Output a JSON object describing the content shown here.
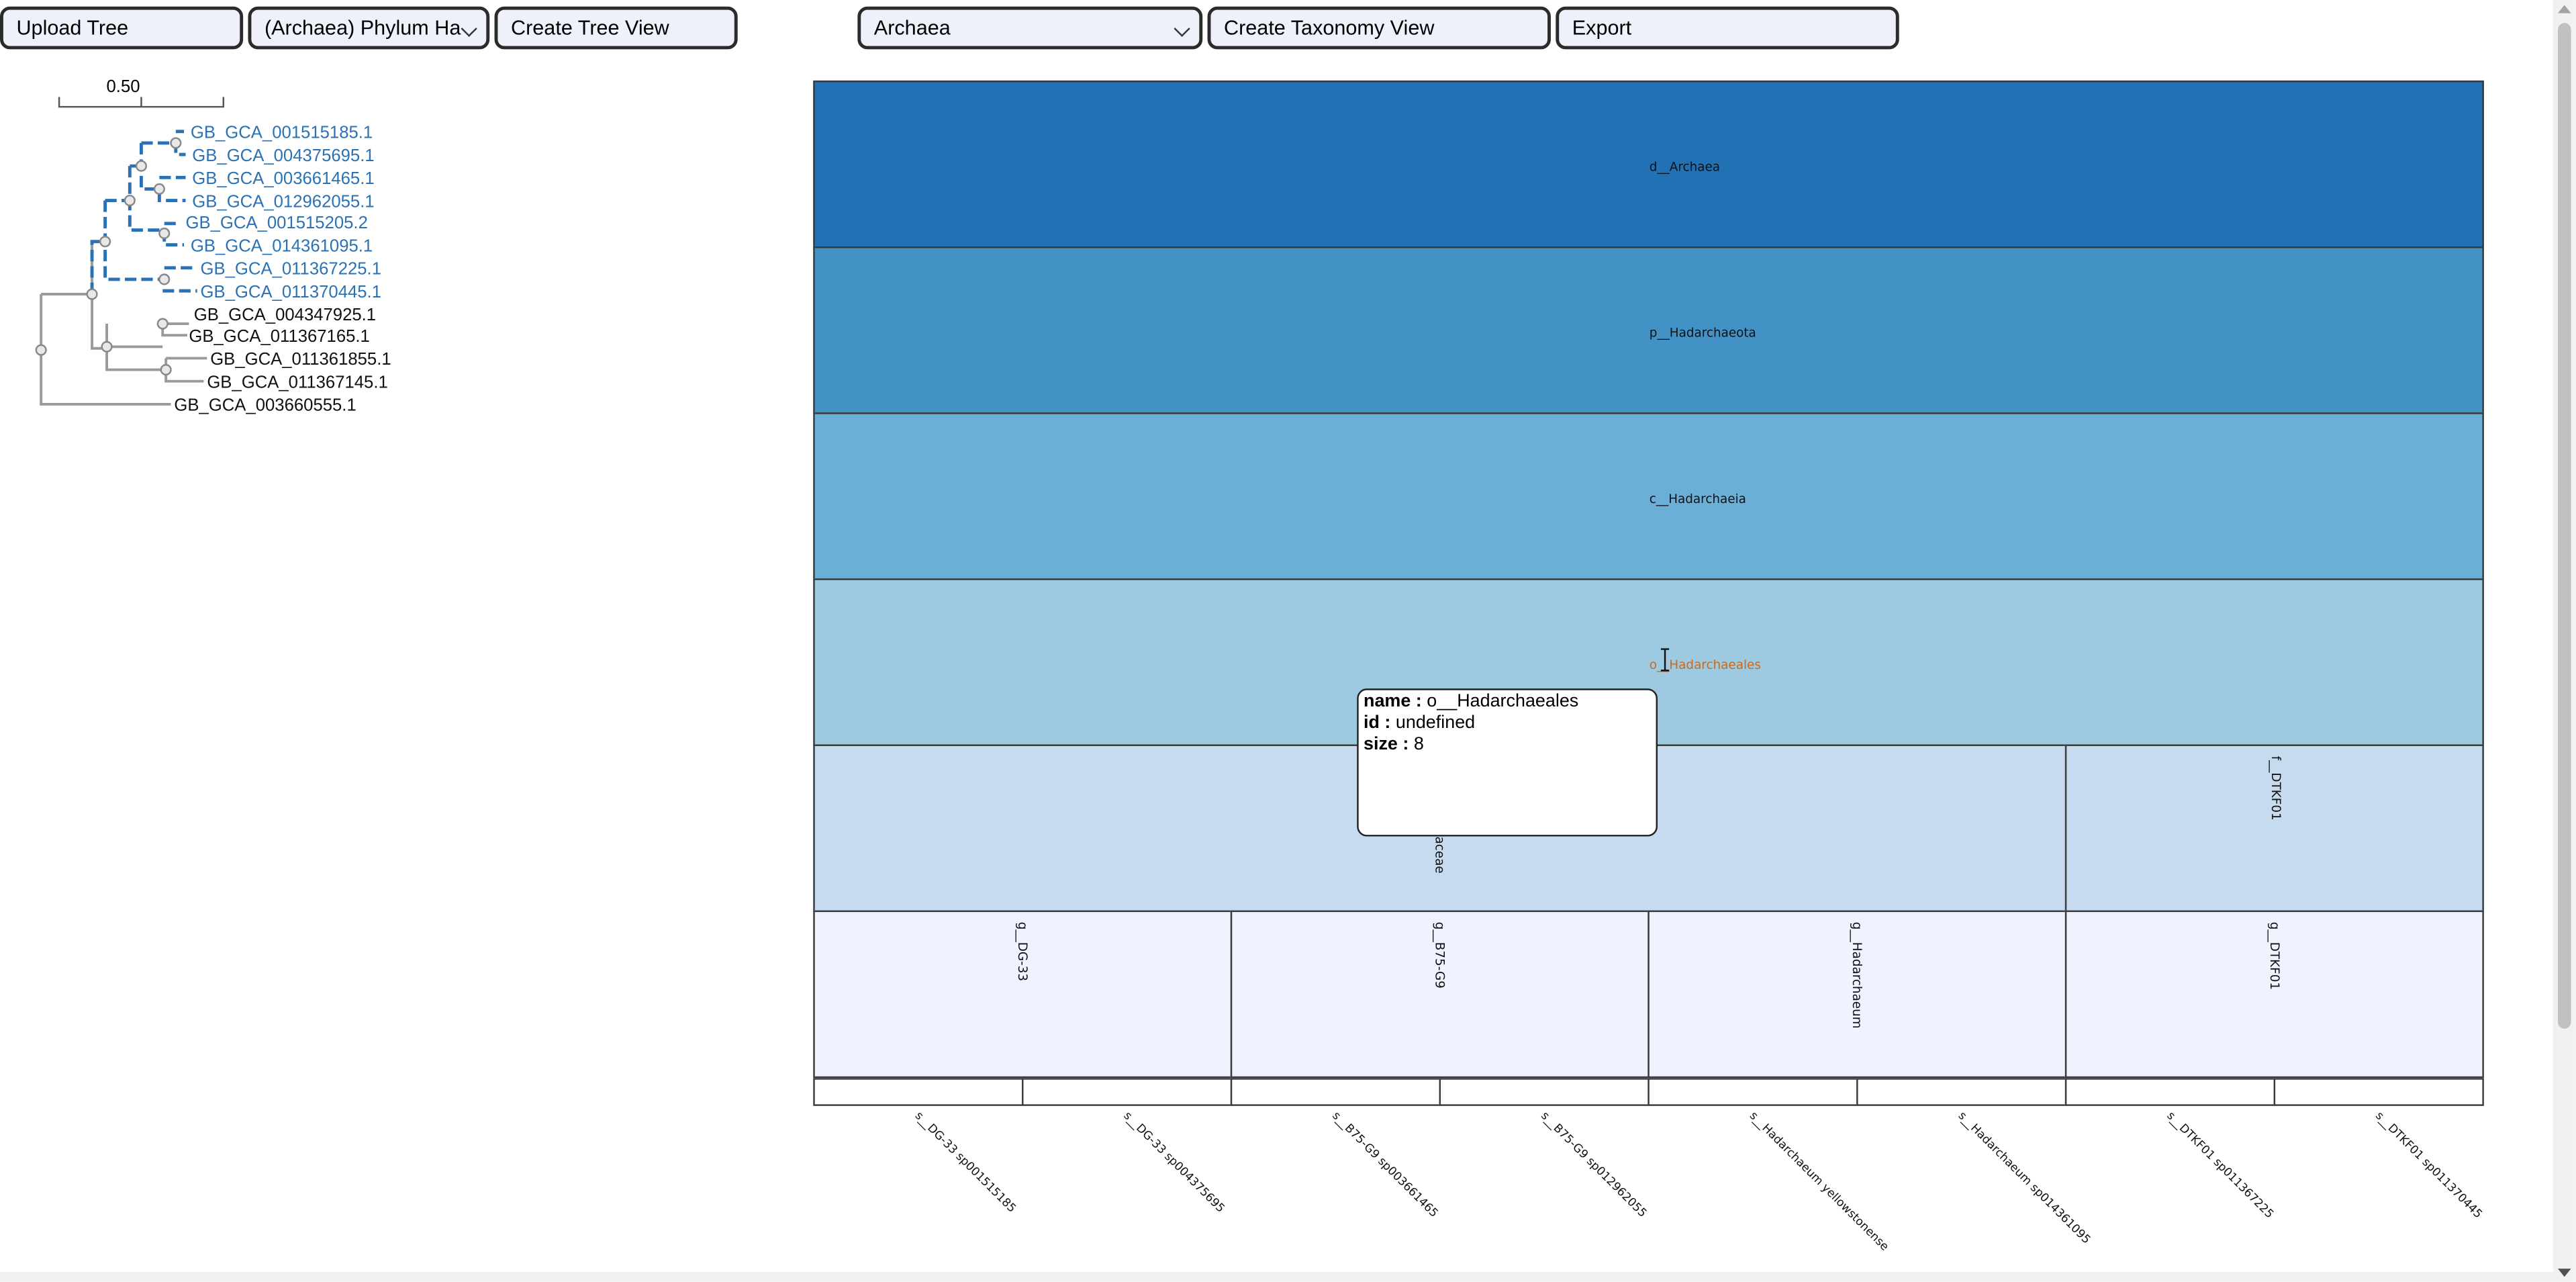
{
  "toolbar": {
    "upload_label": "Upload Tree",
    "rank_select_value": "(Archaea) Phylum Ha",
    "create_tree_label": "Create Tree View",
    "domain_select_value": "Archaea",
    "create_taxonomy_label": "Create Taxonomy View",
    "export_label": "Export"
  },
  "tree": {
    "scale_label": "0.50",
    "highlight_color": "#2a72b5",
    "leaves": [
      {
        "label": "GB_GCA_001515185.1",
        "highlighted": true
      },
      {
        "label": "GB_GCA_004375695.1",
        "highlighted": true
      },
      {
        "label": "GB_GCA_003661465.1",
        "highlighted": true
      },
      {
        "label": "GB_GCA_012962055.1",
        "highlighted": true
      },
      {
        "label": "GB_GCA_001515205.2",
        "highlighted": true
      },
      {
        "label": "GB_GCA_014361095.1",
        "highlighted": true
      },
      {
        "label": "GB_GCA_011367225.1",
        "highlighted": true
      },
      {
        "label": "GB_GCA_011370445.1",
        "highlighted": true
      },
      {
        "label": "GB_GCA_004347925.1",
        "highlighted": false
      },
      {
        "label": "GB_GCA_011367165.1",
        "highlighted": false
      },
      {
        "label": "GB_GCA_011361855.1",
        "highlighted": false
      },
      {
        "label": "GB_GCA_011367145.1",
        "highlighted": false
      },
      {
        "label": "GB_GCA_003660555.1",
        "highlighted": false
      }
    ]
  },
  "taxonomy": {
    "hover_color": "#c8691f",
    "domain": {
      "label": "d__Archaea",
      "color": "#2171b5"
    },
    "phylum": {
      "label": "p__Hadarchaeota",
      "color": "#4292c6"
    },
    "class": {
      "label": "c__Hadarchaeia",
      "color": "#6baed6"
    },
    "order": {
      "label": "o__Hadarchaeales",
      "color": "#9ecae1"
    },
    "families": [
      {
        "label": "f__Hadarchaeaceae",
        "visible": "aceae",
        "color": "#c6dbef"
      },
      {
        "label": "f__DTKF01",
        "color": "#c6dbef"
      }
    ],
    "genera": [
      {
        "label": "g__DG-33",
        "color": "#eff3ff"
      },
      {
        "label": "g__B75-G9",
        "color": "#eff3ff"
      },
      {
        "label": "g__Hadarchaeum",
        "color": "#eff3ff"
      },
      {
        "label": "g__DTKF01",
        "color": "#eff3ff"
      }
    ],
    "species": [
      "s__DG-33 sp001515185",
      "s__DG-33 sp004375695",
      "s__B75-G9 sp003661465",
      "s__B75-G9 sp012962055",
      "s__Hadarchaeum yellowstonense",
      "s__Hadarchaeum sp014361095",
      "s__DTKF01 sp011367225",
      "s__DTKF01 sp011370445"
    ]
  },
  "tooltip": {
    "name_key": "name :",
    "name_value": "o__Hadarchaeales",
    "id_key": "id :",
    "id_value": "undefined",
    "size_key": "size :",
    "size_value": "8"
  }
}
